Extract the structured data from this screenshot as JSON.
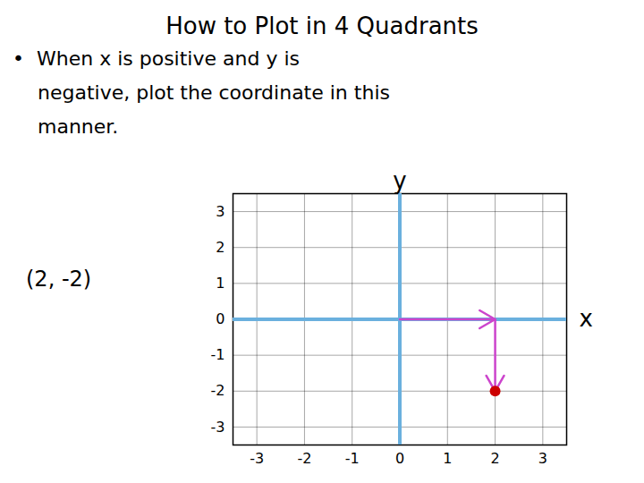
{
  "chart_data": {
    "type": "scatter",
    "title": "How to Plot in 4 Quadrants",
    "subtitle": [
      "•  When x is positive and y is",
      "    negative, plot the coordinate in this",
      "    manner."
    ],
    "annotations": [
      "(2, -2)"
    ],
    "x_label": "x",
    "y_label": "y",
    "x": [
      2
    ],
    "values": [
      -2
    ],
    "color": "#cc0000",
    "xlim": [
      -3.5,
      3.5
    ],
    "ylim": [
      -3.5,
      3.5
    ],
    "xticks": [
      -3,
      -2,
      -1,
      0,
      1,
      2,
      3
    ],
    "yticks": [
      -3,
      -2,
      -1,
      0,
      1,
      2,
      3
    ],
    "grid": true
  }
}
